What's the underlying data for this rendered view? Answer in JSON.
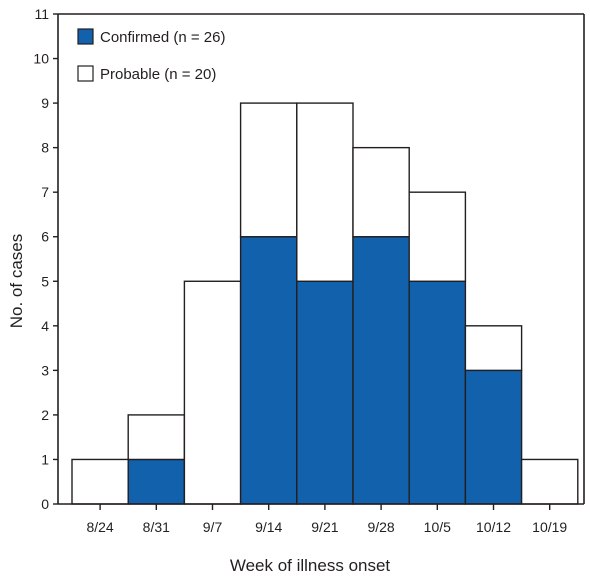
{
  "chart_data": {
    "type": "bar",
    "stacked": true,
    "xlabel": "Week of illness onset",
    "ylabel": "No. of cases",
    "categories": [
      "8/24",
      "8/31",
      "9/7",
      "9/14",
      "9/21",
      "9/28",
      "10/5",
      "10/12",
      "10/19"
    ],
    "ylim": [
      0,
      11
    ],
    "yticks": [
      0,
      1,
      2,
      3,
      4,
      5,
      6,
      7,
      8,
      9,
      10,
      11
    ],
    "series": [
      {
        "name": "Confirmed (n = 26)",
        "color": "#1161ad",
        "values": [
          0,
          1,
          0,
          6,
          5,
          6,
          5,
          3,
          0
        ]
      },
      {
        "name": "Probable (n = 20)",
        "color": "#ffffff",
        "values": [
          1,
          1,
          5,
          3,
          4,
          2,
          2,
          1,
          1
        ]
      }
    ],
    "legend_position": "top-left",
    "grid": false
  }
}
